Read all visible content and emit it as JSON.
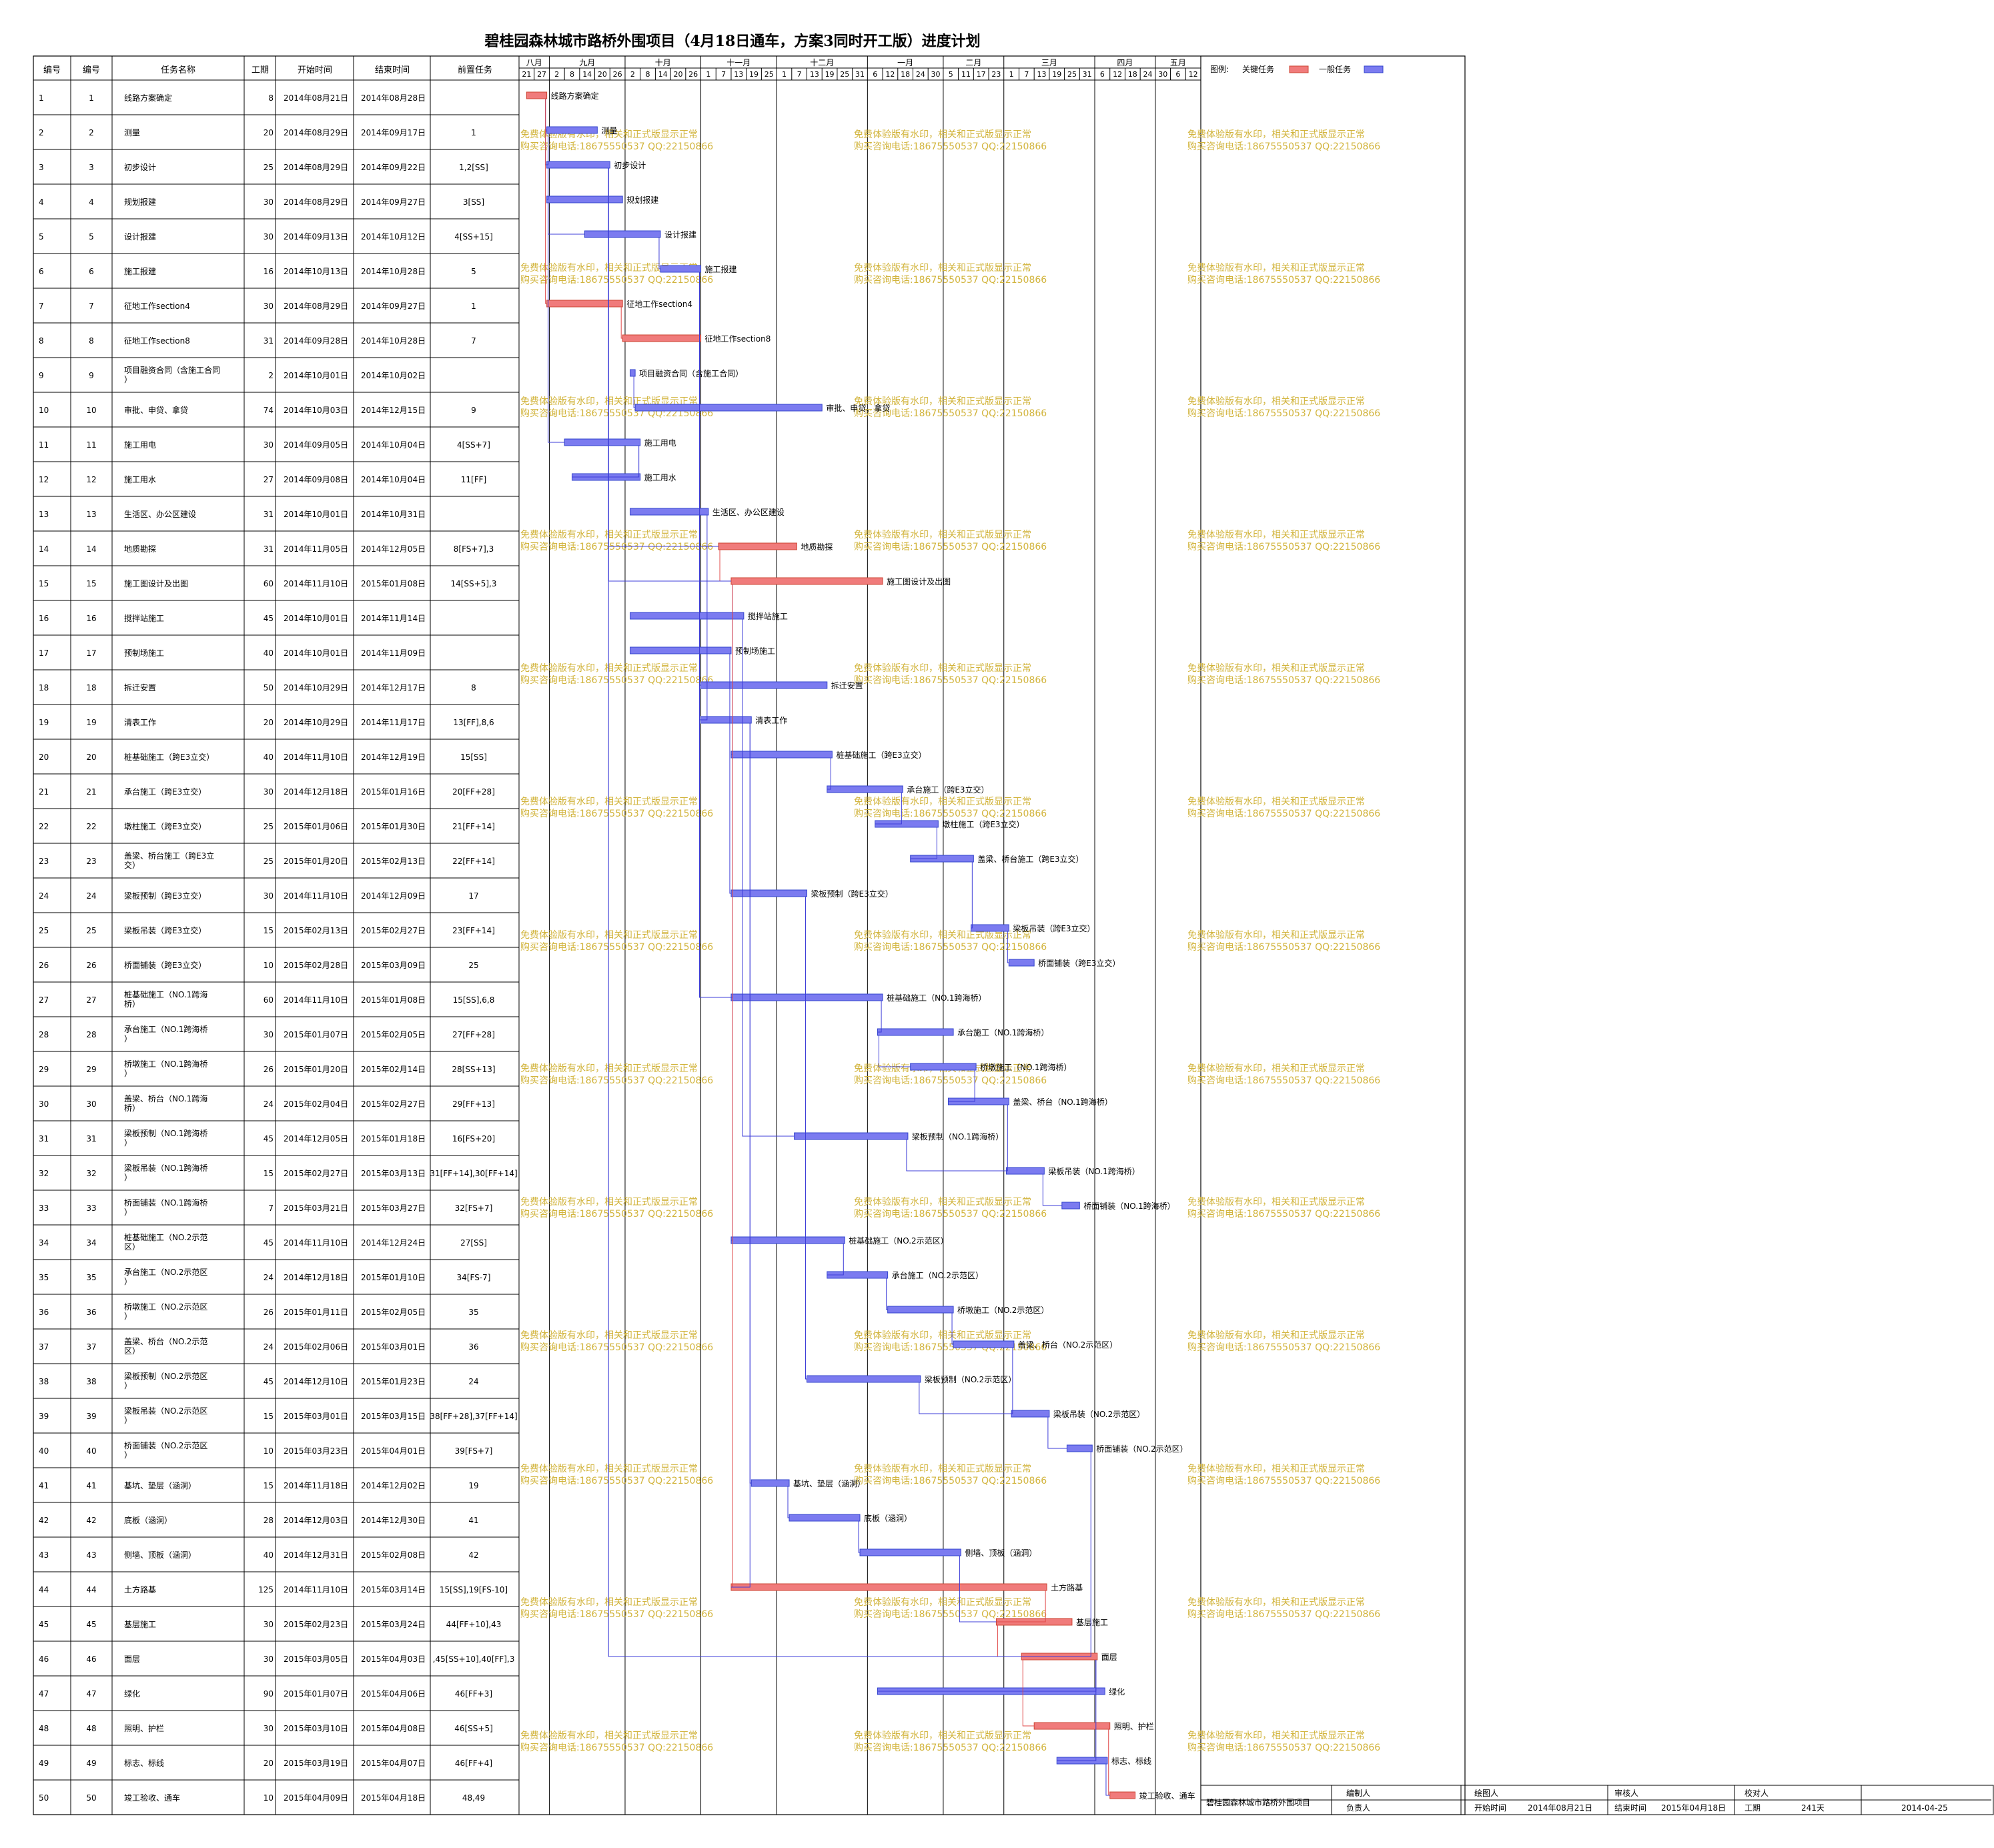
{
  "title": "碧桂园森林城市路桥外围项目（4月18日通车，方案3同时开工版）进度计划",
  "headers": [
    "编号",
    "编号",
    "任务名称",
    "工期",
    "开始时间",
    "结束时间",
    "前置任务"
  ],
  "legend": {
    "label": "图例:",
    "critical": "关键任务",
    "normal": "一般任务",
    "critical_color": "#f07b7b",
    "normal_color": "#7b7bf0"
  },
  "months": [
    {
      "name": "八月",
      "days": [
        "21",
        "27"
      ]
    },
    {
      "name": "九月",
      "days": [
        "2",
        "8",
        "14",
        "20",
        "26"
      ]
    },
    {
      "name": "十月",
      "days": [
        "2",
        "8",
        "14",
        "20",
        "26"
      ]
    },
    {
      "name": "十一月",
      "days": [
        "1",
        "7",
        "13",
        "19",
        "25"
      ]
    },
    {
      "name": "十二月",
      "days": [
        "1",
        "7",
        "13",
        "19",
        "25",
        "31"
      ]
    },
    {
      "name": "一月",
      "days": [
        "6",
        "12",
        "18",
        "24",
        "30"
      ]
    },
    {
      "name": "二月",
      "days": [
        "5",
        "11",
        "17",
        "23"
      ]
    },
    {
      "name": "三月",
      "days": [
        "1",
        "7",
        "13",
        "19",
        "25",
        "31"
      ]
    },
    {
      "name": "四月",
      "days": [
        "6",
        "12",
        "18",
        "24"
      ]
    },
    {
      "name": "五月",
      "days": [
        "30",
        "6",
        "12"
      ]
    }
  ],
  "watermark": [
    "免费体验版有水印，相关和正式版显示正常",
    "购买咨询电话:18675550537 QQ:22150866"
  ],
  "tasks": [
    {
      "id": "1",
      "no": "1",
      "name": "线路方案确定",
      "dur": "8",
      "start": "2014年08月21日",
      "end": "2014年08月28日",
      "pred": "",
      "critical": true,
      "s": "2014-08-21",
      "e": "2014-08-28"
    },
    {
      "id": "2",
      "no": "2",
      "name": "测量",
      "dur": "20",
      "start": "2014年08月29日",
      "end": "2014年09月17日",
      "pred": "1",
      "critical": false,
      "s": "2014-08-29",
      "e": "2014-09-17"
    },
    {
      "id": "3",
      "no": "3",
      "name": "初步设计",
      "dur": "25",
      "start": "2014年08月29日",
      "end": "2014年09月22日",
      "pred": "1,2[SS]",
      "critical": false,
      "s": "2014-08-29",
      "e": "2014-09-22"
    },
    {
      "id": "4",
      "no": "4",
      "name": "规划报建",
      "dur": "30",
      "start": "2014年08月29日",
      "end": "2014年09月27日",
      "pred": "3[SS]",
      "critical": false,
      "s": "2014-08-29",
      "e": "2014-09-27"
    },
    {
      "id": "5",
      "no": "5",
      "name": "设计报建",
      "dur": "30",
      "start": "2014年09月13日",
      "end": "2014年10月12日",
      "pred": "4[SS+15]",
      "critical": false,
      "s": "2014-09-13",
      "e": "2014-10-12"
    },
    {
      "id": "6",
      "no": "6",
      "name": "施工报建",
      "dur": "16",
      "start": "2014年10月13日",
      "end": "2014年10月28日",
      "pred": "5",
      "critical": false,
      "s": "2014-10-13",
      "e": "2014-10-28"
    },
    {
      "id": "7",
      "no": "7",
      "name": "征地工作section4",
      "dur": "30",
      "start": "2014年08月29日",
      "end": "2014年09月27日",
      "pred": "1",
      "critical": true,
      "s": "2014-08-29",
      "e": "2014-09-27"
    },
    {
      "id": "8",
      "no": "8",
      "name": "征地工作section8",
      "dur": "31",
      "start": "2014年09月28日",
      "end": "2014年10月28日",
      "pred": "7",
      "critical": true,
      "s": "2014-09-28",
      "e": "2014-10-28"
    },
    {
      "id": "9",
      "no": "9",
      "name": "项目融资合同（含施工合同）",
      "dur": "2",
      "start": "2014年10月01日",
      "end": "2014年10月02日",
      "pred": "",
      "critical": false,
      "s": "2014-10-01",
      "e": "2014-10-02"
    },
    {
      "id": "10",
      "no": "10",
      "name": "审批、申贷、拿贷",
      "dur": "74",
      "start": "2014年10月03日",
      "end": "2014年12月15日",
      "pred": "9",
      "critical": false,
      "s": "2014-10-03",
      "e": "2014-12-15"
    },
    {
      "id": "11",
      "no": "11",
      "name": "施工用电",
      "dur": "30",
      "start": "2014年09月05日",
      "end": "2014年10月04日",
      "pred": "4[SS+7]",
      "critical": false,
      "s": "2014-09-05",
      "e": "2014-10-04"
    },
    {
      "id": "12",
      "no": "12",
      "name": "施工用水",
      "dur": "27",
      "start": "2014年09月08日",
      "end": "2014年10月04日",
      "pred": "11[FF]",
      "critical": false,
      "s": "2014-09-08",
      "e": "2014-10-04"
    },
    {
      "id": "13",
      "no": "13",
      "name": "生活区、办公区建设",
      "dur": "31",
      "start": "2014年10月01日",
      "end": "2014年10月31日",
      "pred": "",
      "critical": false,
      "s": "2014-10-01",
      "e": "2014-10-31"
    },
    {
      "id": "14",
      "no": "14",
      "name": "地质勘探",
      "dur": "31",
      "start": "2014年11月05日",
      "end": "2014年12月05日",
      "pred": "8[FS+7],3",
      "critical": true,
      "s": "2014-11-05",
      "e": "2014-12-05"
    },
    {
      "id": "15",
      "no": "15",
      "name": "施工图设计及出图",
      "dur": "60",
      "start": "2014年11月10日",
      "end": "2015年01月08日",
      "pred": "14[SS+5],3",
      "critical": true,
      "s": "2014-11-10",
      "e": "2015-01-08"
    },
    {
      "id": "16",
      "no": "16",
      "name": "搅拌站施工",
      "dur": "45",
      "start": "2014年10月01日",
      "end": "2014年11月14日",
      "pred": "",
      "critical": false,
      "s": "2014-10-01",
      "e": "2014-11-14"
    },
    {
      "id": "17",
      "no": "17",
      "name": "预制场施工",
      "dur": "40",
      "start": "2014年10月01日",
      "end": "2014年11月09日",
      "pred": "",
      "critical": false,
      "s": "2014-10-01",
      "e": "2014-11-09"
    },
    {
      "id": "18",
      "no": "18",
      "name": "拆迁安置",
      "dur": "50",
      "start": "2014年10月29日",
      "end": "2014年12月17日",
      "pred": "8",
      "critical": false,
      "s": "2014-10-29",
      "e": "2014-12-17"
    },
    {
      "id": "19",
      "no": "19",
      "name": "清表工作",
      "dur": "20",
      "start": "2014年10月29日",
      "end": "2014年11月17日",
      "pred": "13[FF],8,6",
      "critical": false,
      "s": "2014-10-29",
      "e": "2014-11-17"
    },
    {
      "id": "20",
      "no": "20",
      "name": "桩基础施工（跨E3立交）",
      "dur": "40",
      "start": "2014年11月10日",
      "end": "2014年12月19日",
      "pred": "15[SS]",
      "critical": false,
      "s": "2014-11-10",
      "e": "2014-12-19"
    },
    {
      "id": "21",
      "no": "21",
      "name": "承台施工（跨E3立交）",
      "dur": "30",
      "start": "2014年12月18日",
      "end": "2015年01月16日",
      "pred": "20[FF+28]",
      "critical": false,
      "s": "2014-12-18",
      "e": "2015-01-16"
    },
    {
      "id": "22",
      "no": "22",
      "name": "墩柱施工（跨E3立交）",
      "dur": "25",
      "start": "2015年01月06日",
      "end": "2015年01月30日",
      "pred": "21[FF+14]",
      "critical": false,
      "s": "2015-01-06",
      "e": "2015-01-30"
    },
    {
      "id": "23",
      "no": "23",
      "name": "盖梁、桥台施工（跨E3立交）",
      "dur": "25",
      "start": "2015年01月20日",
      "end": "2015年02月13日",
      "pred": "22[FF+14]",
      "critical": false,
      "s": "2015-01-20",
      "e": "2015-02-13"
    },
    {
      "id": "24",
      "no": "24",
      "name": "梁板预制（跨E3立交）",
      "dur": "30",
      "start": "2014年11月10日",
      "end": "2014年12月09日",
      "pred": "17",
      "critical": false,
      "s": "2014-11-10",
      "e": "2014-12-09"
    },
    {
      "id": "25",
      "no": "25",
      "name": "梁板吊装（跨E3立交）",
      "dur": "15",
      "start": "2015年02月13日",
      "end": "2015年02月27日",
      "pred": "23[FF+14]",
      "critical": false,
      "s": "2015-02-13",
      "e": "2015-02-27"
    },
    {
      "id": "26",
      "no": "26",
      "name": "桥面铺装（跨E3立交）",
      "dur": "10",
      "start": "2015年02月28日",
      "end": "2015年03月09日",
      "pred": "25",
      "critical": false,
      "s": "2015-02-28",
      "e": "2015-03-09"
    },
    {
      "id": "27",
      "no": "27",
      "name": "桩基础施工（NO.1跨海桥）",
      "dur": "60",
      "start": "2014年11月10日",
      "end": "2015年01月08日",
      "pred": "15[SS],6,8",
      "critical": false,
      "s": "2014-11-10",
      "e": "2015-01-08"
    },
    {
      "id": "28",
      "no": "28",
      "name": "承台施工（NO.1跨海桥）",
      "dur": "30",
      "start": "2015年01月07日",
      "end": "2015年02月05日",
      "pred": "27[FF+28]",
      "critical": false,
      "s": "2015-01-07",
      "e": "2015-02-05"
    },
    {
      "id": "29",
      "no": "29",
      "name": "桥墩施工（NO.1跨海桥）",
      "dur": "26",
      "start": "2015年01月20日",
      "end": "2015年02月14日",
      "pred": "28[SS+13]",
      "critical": false,
      "s": "2015-01-20",
      "e": "2015-02-14"
    },
    {
      "id": "30",
      "no": "30",
      "name": "盖梁、桥台（NO.1跨海桥）",
      "dur": "24",
      "start": "2015年02月04日",
      "end": "2015年02月27日",
      "pred": "29[FF+13]",
      "critical": false,
      "s": "2015-02-04",
      "e": "2015-02-27"
    },
    {
      "id": "31",
      "no": "31",
      "name": "梁板预制（NO.1跨海桥）",
      "dur": "45",
      "start": "2014年12月05日",
      "end": "2015年01月18日",
      "pred": "16[FS+20]",
      "critical": false,
      "s": "2014-12-05",
      "e": "2015-01-18"
    },
    {
      "id": "32",
      "no": "32",
      "name": "梁板吊装（NO.1跨海桥）",
      "dur": "15",
      "start": "2015年02月27日",
      "end": "2015年03月13日",
      "pred": "31[FF+14],30[FF+14]",
      "critical": false,
      "s": "2015-02-27",
      "e": "2015-03-13"
    },
    {
      "id": "33",
      "no": "33",
      "name": "桥面铺装（NO.1跨海桥）",
      "dur": "7",
      "start": "2015年03月21日",
      "end": "2015年03月27日",
      "pred": "32[FS+7]",
      "critical": false,
      "s": "2015-03-21",
      "e": "2015-03-27"
    },
    {
      "id": "34",
      "no": "34",
      "name": "桩基础施工（NO.2示范区）",
      "dur": "45",
      "start": "2014年11月10日",
      "end": "2014年12月24日",
      "pred": "27[SS]",
      "critical": false,
      "s": "2014-11-10",
      "e": "2014-12-24"
    },
    {
      "id": "35",
      "no": "35",
      "name": "承台施工（NO.2示范区）",
      "dur": "24",
      "start": "2014年12月18日",
      "end": "2015年01月10日",
      "pred": "34[FS-7]",
      "critical": false,
      "s": "2014-12-18",
      "e": "2015-01-10"
    },
    {
      "id": "36",
      "no": "36",
      "name": "桥墩施工（NO.2示范区）",
      "dur": "26",
      "start": "2015年01月11日",
      "end": "2015年02月05日",
      "pred": "35",
      "critical": false,
      "s": "2015-01-11",
      "e": "2015-02-05"
    },
    {
      "id": "37",
      "no": "37",
      "name": "盖梁、桥台（NO.2示范区）",
      "dur": "24",
      "start": "2015年02月06日",
      "end": "2015年03月01日",
      "pred": "36",
      "critical": false,
      "s": "2015-02-06",
      "e": "2015-03-01"
    },
    {
      "id": "38",
      "no": "38",
      "name": "梁板预制（NO.2示范区）",
      "dur": "45",
      "start": "2014年12月10日",
      "end": "2015年01月23日",
      "pred": "24",
      "critical": false,
      "s": "2014-12-10",
      "e": "2015-01-23"
    },
    {
      "id": "39",
      "no": "39",
      "name": "梁板吊装（NO.2示范区）",
      "dur": "15",
      "start": "2015年03月01日",
      "end": "2015年03月15日",
      "pred": "38[FF+28],37[FF+14]",
      "critical": false,
      "s": "2015-03-01",
      "e": "2015-03-15"
    },
    {
      "id": "40",
      "no": "40",
      "name": "桥面铺装（NO.2示范区）",
      "dur": "10",
      "start": "2015年03月23日",
      "end": "2015年04月01日",
      "pred": "39[FS+7]",
      "critical": false,
      "s": "2015-03-23",
      "e": "2015-04-01"
    },
    {
      "id": "41",
      "no": "41",
      "name": "基坑、垫层（涵洞）",
      "dur": "15",
      "start": "2014年11月18日",
      "end": "2014年12月02日",
      "pred": "19",
      "critical": false,
      "s": "2014-11-18",
      "e": "2014-12-02"
    },
    {
      "id": "42",
      "no": "42",
      "name": "底板（涵洞）",
      "dur": "28",
      "start": "2014年12月03日",
      "end": "2014年12月30日",
      "pred": "41",
      "critical": false,
      "s": "2014-12-03",
      "e": "2014-12-30"
    },
    {
      "id": "43",
      "no": "43",
      "name": "侧墙、顶板（涵洞）",
      "dur": "40",
      "start": "2014年12月31日",
      "end": "2015年02月08日",
      "pred": "42",
      "critical": false,
      "s": "2014-12-31",
      "e": "2015-02-08"
    },
    {
      "id": "44",
      "no": "44",
      "name": "土方路基",
      "dur": "125",
      "start": "2014年11月10日",
      "end": "2015年03月14日",
      "pred": "15[SS],19[FS-10]",
      "critical": true,
      "s": "2014-11-10",
      "e": "2015-03-14"
    },
    {
      "id": "45",
      "no": "45",
      "name": "基层施工",
      "dur": "30",
      "start": "2015年02月23日",
      "end": "2015年03月24日",
      "pred": "44[FF+10],43",
      "critical": true,
      "s": "2015-02-23",
      "e": "2015-03-24"
    },
    {
      "id": "46",
      "no": "46",
      "name": "面层",
      "dur": "30",
      "start": "2015年03月05日",
      "end": "2015年04月03日",
      "pred": ",45[SS+10],40[FF],3",
      "critical": true,
      "s": "2015-03-05",
      "e": "2015-04-03"
    },
    {
      "id": "47",
      "no": "47",
      "name": "绿化",
      "dur": "90",
      "start": "2015年01月07日",
      "end": "2015年04月06日",
      "pred": "46[FF+3]",
      "critical": false,
      "s": "2015-01-07",
      "e": "2015-04-06"
    },
    {
      "id": "48",
      "no": "48",
      "name": "照明、护栏",
      "dur": "30",
      "start": "2015年03月10日",
      "end": "2015年04月08日",
      "pred": "46[SS+5]",
      "critical": true,
      "s": "2015-03-10",
      "e": "2015-04-08"
    },
    {
      "id": "49",
      "no": "49",
      "name": "标志、标线",
      "dur": "20",
      "start": "2015年03月19日",
      "end": "2015年04月07日",
      "pred": "46[FF+4]",
      "critical": false,
      "s": "2015-03-19",
      "e": "2015-04-07"
    },
    {
      "id": "50",
      "no": "50",
      "name": "竣工验收、通车",
      "dur": "10",
      "start": "2015年04月09日",
      "end": "2015年04月18日",
      "pred": "48,49",
      "critical": true,
      "s": "2015-04-09",
      "e": "2015-04-18"
    }
  ],
  "footer": {
    "project": "碧桂园森林城市路桥外围项目",
    "compiler_label": "编制人",
    "owner_label": "负责人",
    "drawer_label": "绘图人",
    "reviewer_label": "审核人",
    "checker_label": "校对人",
    "start_label": "开始时间",
    "start_value": "2014年08月21日",
    "end_label": "结束时间",
    "end_value": "2015年04月18日",
    "dur_label": "工期",
    "dur_value": "241天",
    "date_value": "2014-04-25"
  }
}
